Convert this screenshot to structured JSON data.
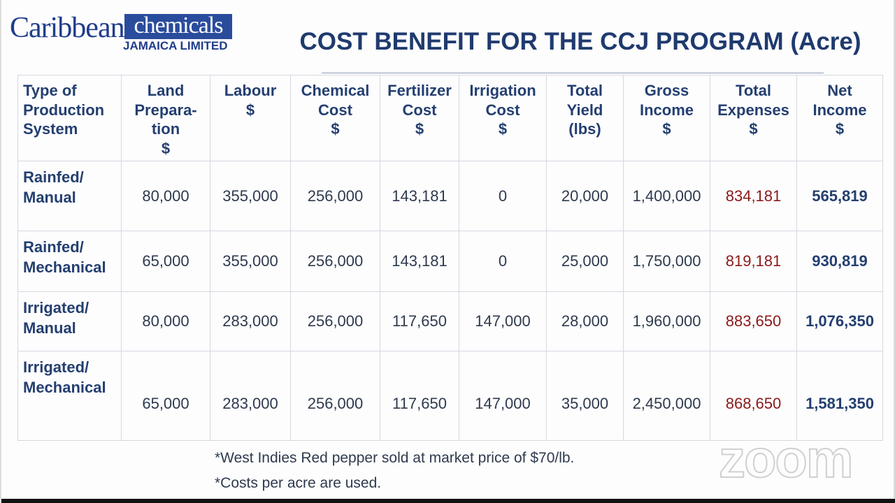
{
  "logo": {
    "word1": "Caribbean",
    "word2": "chemicals",
    "subtitle": "JAMAICA LIMITED"
  },
  "title": "COST BENEFIT FOR THE CCJ PROGRAM (Acre)",
  "table": {
    "header": [
      [
        "Type of",
        "Production",
        "System"
      ],
      [
        "Land",
        "Prepara-",
        "tion",
        "$"
      ],
      [
        "Labour",
        "$"
      ],
      [
        "Chemical",
        "Cost",
        "$"
      ],
      [
        "Fertilizer",
        "Cost",
        "$"
      ],
      [
        "Irrigation",
        "Cost",
        "$"
      ],
      [
        "Total",
        "Yield",
        "(lbs)"
      ],
      [
        "Gross",
        "Income",
        "$"
      ],
      [
        "Total",
        "Expenses",
        "$"
      ],
      [
        "Net",
        "Income",
        "$"
      ]
    ],
    "rows": [
      [
        [
          "Rainfed/",
          "Manual"
        ],
        "80,000",
        "355,000",
        "256,000",
        "143,181",
        "0",
        "20,000",
        "1,400,000",
        "834,181",
        "565,819"
      ],
      [
        [
          "Rainfed/",
          "Mechanical"
        ],
        "65,000",
        "355,000",
        "256,000",
        "143,181",
        "0",
        "25,000",
        "1,750,000",
        "819,181",
        "930,819"
      ],
      [
        [
          "Irrigated/",
          "Manual"
        ],
        "80,000",
        "283,000",
        "256,000",
        "117,650",
        "147,000",
        "28,000",
        "1,960,000",
        "883,650",
        "1,076,350"
      ],
      [
        [
          "Irrigated/",
          "Mechanical"
        ],
        "65,000",
        "283,000",
        "256,000",
        "117,650",
        "147,000",
        "35,000",
        "2,450,000",
        "868,650",
        "1,581,350"
      ]
    ]
  },
  "notes": [
    "*West Indies Red pepper sold at market price of $70/lb.",
    "*Costs per acre are used."
  ],
  "watermark": "zoom"
}
